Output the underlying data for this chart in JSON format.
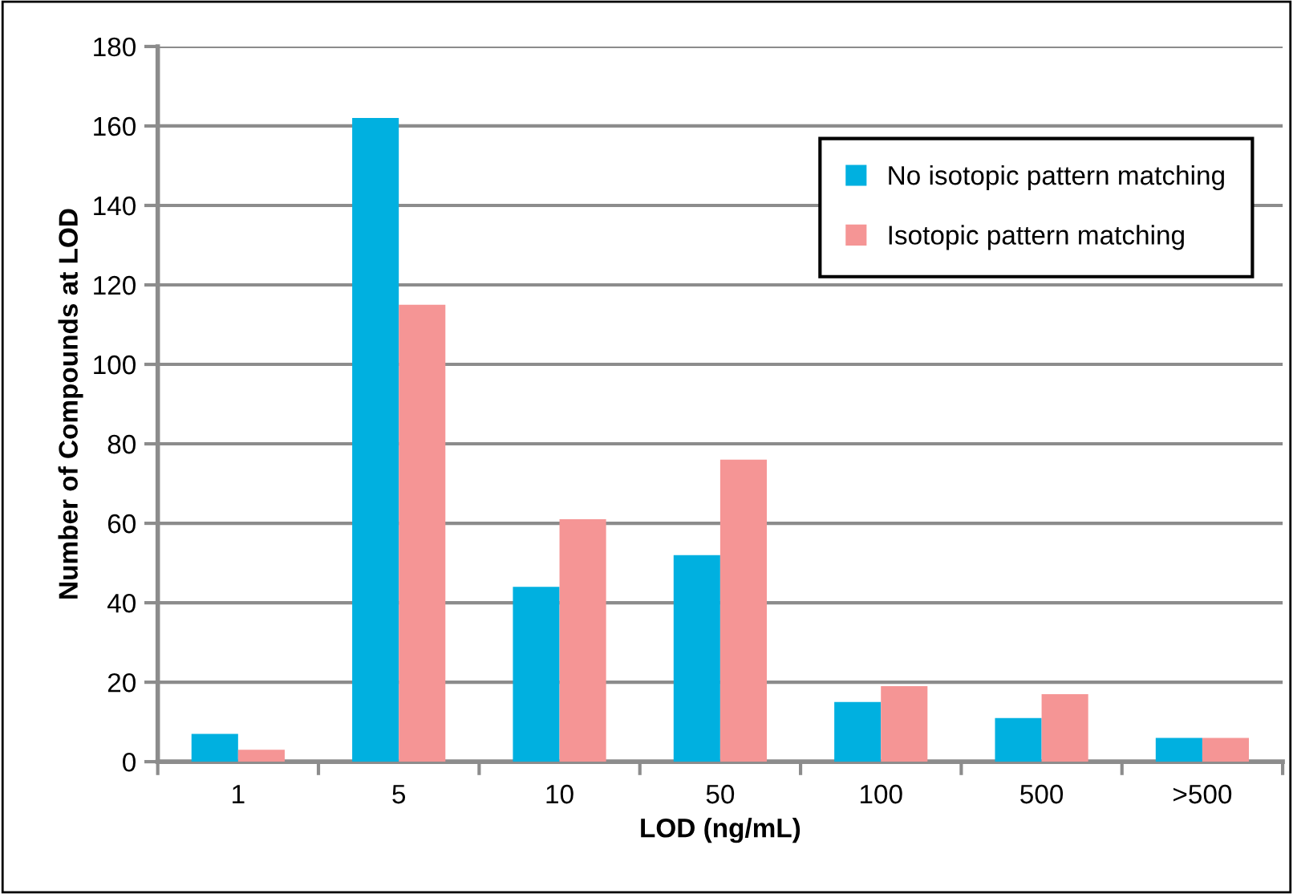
{
  "chart_data": {
    "type": "bar",
    "xlabel": "LOD (ng/mL)",
    "ylabel": "Number of Compounds at LOD",
    "categories": [
      "1",
      "5",
      "10",
      "50",
      "100",
      "500",
      ">500"
    ],
    "series": [
      {
        "name": "No isotopic pattern matching",
        "color": "#00b0e0",
        "values": [
          7,
          162,
          44,
          52,
          15,
          11,
          6
        ]
      },
      {
        "name": "Isotopic pattern matching",
        "color": "#f59595",
        "values": [
          3,
          115,
          61,
          76,
          19,
          17,
          6
        ]
      }
    ],
    "ylim": [
      0,
      180
    ],
    "yticks": [
      0,
      20,
      40,
      60,
      80,
      100,
      120,
      140,
      160,
      180
    ],
    "grid": "y",
    "legend": "top right"
  }
}
